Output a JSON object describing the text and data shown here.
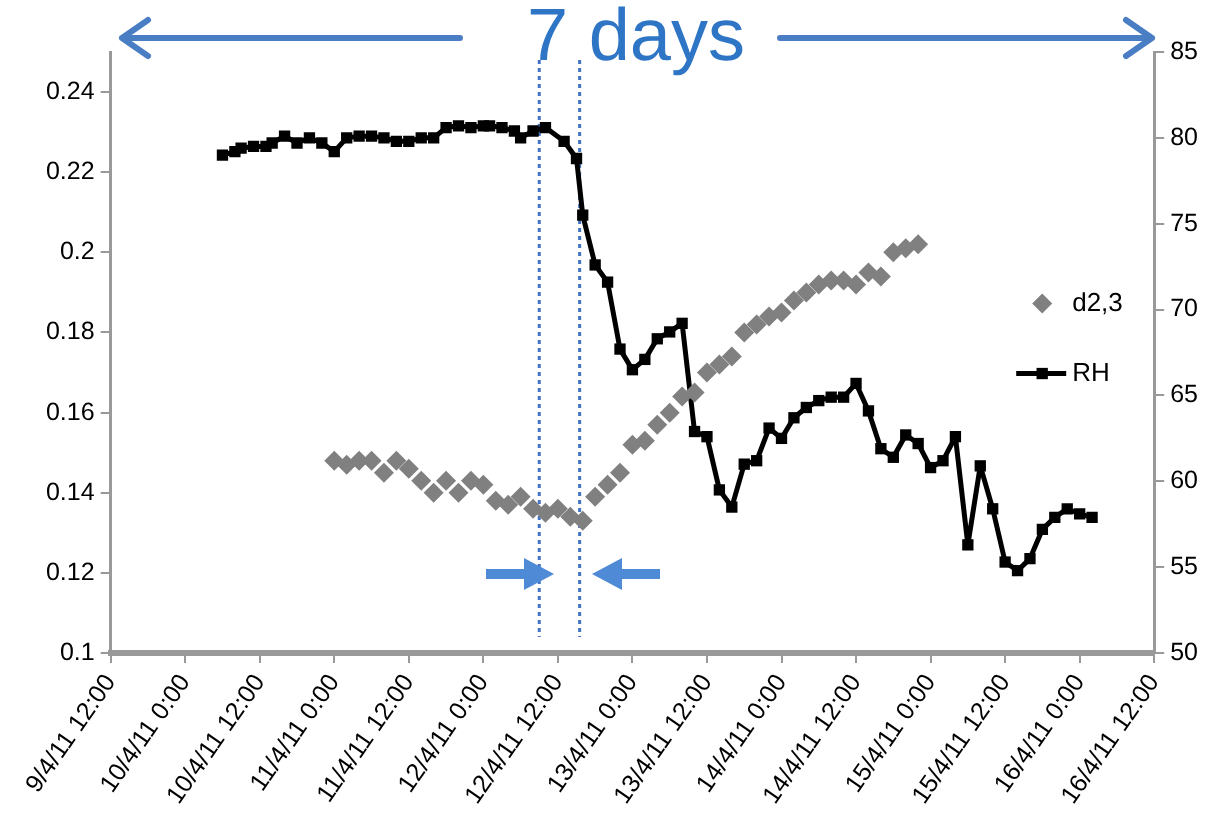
{
  "chart_data": {
    "type": "line",
    "annotations": [
      "7 days"
    ],
    "xlim": [
      "--04-09T12:00",
      "--04-16T12:00"
    ],
    "xticks": [
      {
        "value": "--04-09T12:00",
        "label": "9/4/11 12:00"
      },
      {
        "value": "--04-10T00:00",
        "label": "10/4/11 0:00"
      },
      {
        "value": "--04-10T12:00",
        "label": "10/4/11 12:00"
      },
      {
        "value": "--04-11T00:00",
        "label": "11/4/11 0:00"
      },
      {
        "value": "--04-11T12:00",
        "label": "11/4/11 12:00"
      },
      {
        "value": "--04-12T00:00",
        "label": "12/4/11 0:00"
      },
      {
        "value": "--04-12T12:00",
        "label": "12/4/11 12:00"
      },
      {
        "value": "--04-13T00:00",
        "label": "13/4/11 0:00"
      },
      {
        "value": "--04-13T12:00",
        "label": "13/4/11 12:00"
      },
      {
        "value": "--04-14T00:00",
        "label": "14/4/11 0:00"
      },
      {
        "value": "--04-14T12:00",
        "label": "14/4/11 12:00"
      },
      {
        "value": "--04-15T00:00",
        "label": "15/4/11 0:00"
      },
      {
        "value": "--04-15T12:00",
        "label": "15/4/11 12:00"
      },
      {
        "value": "--04-16T00:00",
        "label": "16/4/11 0:00"
      },
      {
        "value": "--04-16T12:00",
        "label": "16/4/11 12:00"
      }
    ],
    "ylim": [
      0.1,
      0.25
    ],
    "yticks": [
      0.1,
      0.12,
      0.14,
      0.16,
      0.18,
      0.2,
      0.22,
      0.24
    ],
    "y2lim": [
      50,
      85
    ],
    "y2ticks": [
      50,
      55,
      60,
      65,
      70,
      75,
      80,
      85
    ],
    "grid": false,
    "legend": "right",
    "ref_lines": [
      {
        "axis": "x",
        "value": "--04-12T09:00",
        "color": "#4472c4",
        "line_style": "dotted"
      },
      {
        "axis": "x",
        "value": "--04-12T15:30",
        "color": "#4472c4",
        "line_style": "dotted"
      }
    ],
    "series": [
      {
        "name": "d2,3",
        "type": "scatter",
        "marker": "diamond",
        "color": "#808080",
        "x": [
          "--04-11T00:00",
          "--04-11T02:00",
          "--04-11T04:00",
          "--04-11T06:00",
          "--04-11T08:00",
          "--04-11T10:00",
          "--04-11T12:00",
          "--04-11T14:00",
          "--04-11T16:00",
          "--04-11T18:00",
          "--04-11T20:00",
          "--04-11T22:00",
          "--04-12T00:00",
          "--04-12T02:00",
          "--04-12T04:00",
          "--04-12T06:00",
          "--04-12T08:00",
          "--04-12T10:00",
          "--04-12T12:00",
          "--04-12T14:00",
          "--04-12T16:00",
          "--04-12T18:00",
          "--04-12T20:00",
          "--04-12T22:00",
          "--04-13T00:00",
          "--04-13T02:00",
          "--04-13T04:00",
          "--04-13T06:00",
          "--04-13T08:00",
          "--04-13T10:00",
          "--04-13T12:00",
          "--04-13T14:00",
          "--04-13T16:00",
          "--04-13T18:00",
          "--04-13T20:00",
          "--04-13T22:00",
          "--04-14T00:00",
          "--04-14T02:00",
          "--04-14T04:00",
          "--04-14T06:00",
          "--04-14T08:00",
          "--04-14T10:00",
          "--04-14T12:00",
          "--04-14T14:00",
          "--04-14T16:00",
          "--04-14T18:00",
          "--04-14T20:00",
          "--04-14T22:00"
        ],
        "values": [
          0.148,
          0.147,
          0.148,
          0.148,
          0.145,
          0.148,
          0.146,
          0.143,
          0.14,
          0.143,
          0.14,
          0.143,
          0.142,
          0.138,
          0.137,
          0.139,
          0.136,
          0.135,
          0.136,
          0.134,
          0.133,
          0.139,
          0.142,
          0.145,
          0.152,
          0.153,
          0.157,
          0.16,
          0.164,
          0.165,
          0.17,
          0.172,
          0.174,
          0.18,
          0.182,
          0.184,
          0.185,
          0.188,
          0.19,
          0.192,
          0.193,
          0.193,
          0.192,
          0.195,
          0.194,
          0.2,
          0.201,
          0.202
        ]
      },
      {
        "name": "RH",
        "type": "line",
        "marker": "square",
        "axis": "y2",
        "color": "#000000",
        "x": [
          "--04-10T06:00",
          "--04-10T08:00",
          "--04-10T09:00",
          "--04-10T11:00",
          "--04-10T13:00",
          "--04-10T14:00",
          "--04-10T16:00",
          "--04-10T18:00",
          "--04-10T20:00",
          "--04-10T22:00",
          "--04-11T00:00",
          "--04-11T02:00",
          "--04-11T04:00",
          "--04-11T06:00",
          "--04-11T08:00",
          "--04-11T10:00",
          "--04-11T12:00",
          "--04-11T14:00",
          "--04-11T16:00",
          "--04-11T18:00",
          "--04-11T20:00",
          "--04-11T22:00",
          "--04-12T00:00",
          "--04-12T01:00",
          "--04-12T03:00",
          "--04-12T05:00",
          "--04-12T06:00",
          "--04-12T08:00",
          "--04-12T10:00",
          "--04-12T13:00",
          "--04-12T15:00",
          "--04-12T16:00",
          "--04-12T18:00",
          "--04-12T20:00",
          "--04-12T22:00",
          "--04-13T00:00",
          "--04-13T02:00",
          "--04-13T04:00",
          "--04-13T06:00",
          "--04-13T08:00",
          "--04-13T10:00",
          "--04-13T12:00",
          "--04-13T14:00",
          "--04-13T16:00",
          "--04-13T18:00",
          "--04-13T20:00",
          "--04-13T22:00",
          "--04-14T00:00",
          "--04-14T02:00",
          "--04-14T04:00",
          "--04-14T06:00",
          "--04-14T08:00",
          "--04-14T10:00",
          "--04-14T12:00",
          "--04-14T14:00",
          "--04-14T16:00",
          "--04-14T18:00",
          "--04-14T20:00",
          "--04-14T22:00",
          "--04-15T00:00",
          "--04-15T02:00",
          "--04-15T04:00",
          "--04-15T06:00",
          "--04-15T08:00",
          "--04-15T10:00",
          "--04-15T12:00",
          "--04-15T14:00",
          "--04-15T16:00",
          "--04-15T18:00",
          "--04-15T20:00",
          "--04-15T22:00",
          "--04-16T00:00",
          "--04-16T02:00"
        ],
        "values": [
          79.0,
          79.2,
          79.4,
          79.5,
          79.5,
          79.7,
          80.1,
          79.7,
          80.0,
          79.7,
          79.2,
          80.0,
          80.1,
          80.1,
          80.0,
          79.8,
          79.8,
          80.0,
          80.0,
          80.6,
          80.7,
          80.6,
          80.7,
          80.7,
          80.6,
          80.4,
          80.0,
          80.4,
          80.6,
          79.8,
          78.8,
          75.5,
          72.6,
          71.6,
          67.7,
          66.5,
          67.1,
          68.3,
          68.7,
          69.2,
          62.9,
          62.6,
          59.5,
          58.5,
          61.0,
          61.2,
          63.1,
          62.5,
          63.7,
          64.3,
          64.7,
          64.9,
          64.9,
          65.7,
          64.1,
          61.9,
          61.4,
          62.7,
          62.2,
          60.8,
          61.2,
          62.6,
          56.3,
          60.9,
          58.4,
          55.3,
          54.8,
          55.5,
          57.2,
          57.9,
          58.4,
          58.1,
          57.9
        ]
      }
    ]
  }
}
